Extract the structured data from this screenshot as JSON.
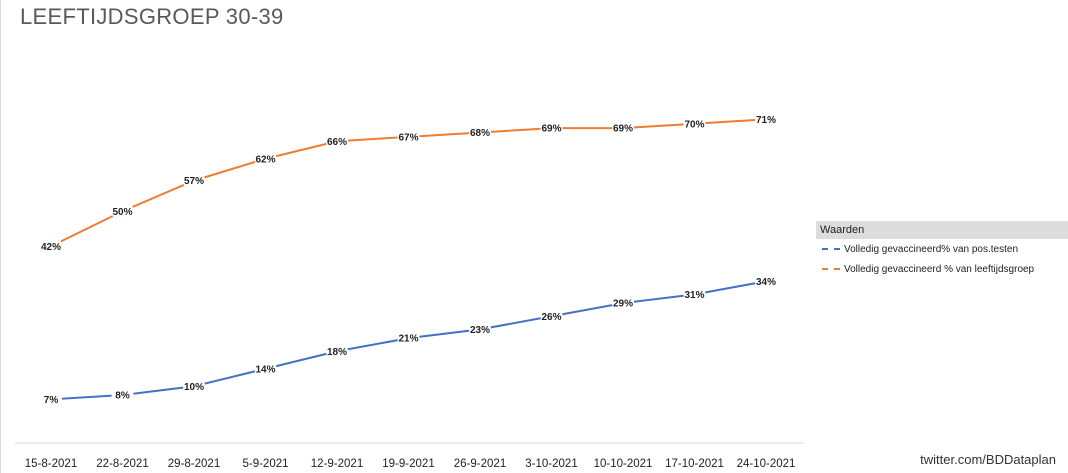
{
  "chart_data": {
    "type": "line",
    "title": "LEEFTIJDSGROEP 30-39",
    "xlabel": "",
    "ylabel": "",
    "categories": [
      "15-8-2021",
      "22-8-2021",
      "29-8-2021",
      "5-9-2021",
      "12-9-2021",
      "19-9-2021",
      "26-9-2021",
      "3-10-2021",
      "10-10-2021",
      "17-10-2021",
      "24-10-2021"
    ],
    "ylim": [
      0,
      80
    ],
    "grid": false,
    "legend_position": "right",
    "series": [
      {
        "name": "Volledig gevaccineerd% van pos.testen",
        "color": "#4472c4",
        "values": [
          7,
          8,
          10,
          14,
          18,
          21,
          23,
          26,
          29,
          31,
          34
        ],
        "labels": [
          "7%",
          "8%",
          "10%",
          "14%",
          "18%",
          "21%",
          "23%",
          "26%",
          "29%",
          "31%",
          "34%"
        ]
      },
      {
        "name": "Volledig gevaccineerd % van leeftijdsgroep",
        "color": "#ed7d31",
        "values": [
          42,
          50,
          57,
          62,
          66,
          67,
          68,
          69,
          69,
          70,
          71
        ],
        "labels": [
          "42%",
          "50%",
          "57%",
          "62%",
          "66%",
          "67%",
          "68%",
          "69%",
          "69%",
          "70%",
          "71%"
        ]
      }
    ]
  },
  "legend": {
    "title": "Waarden"
  },
  "credit": "twitter.com/BDDataplan"
}
